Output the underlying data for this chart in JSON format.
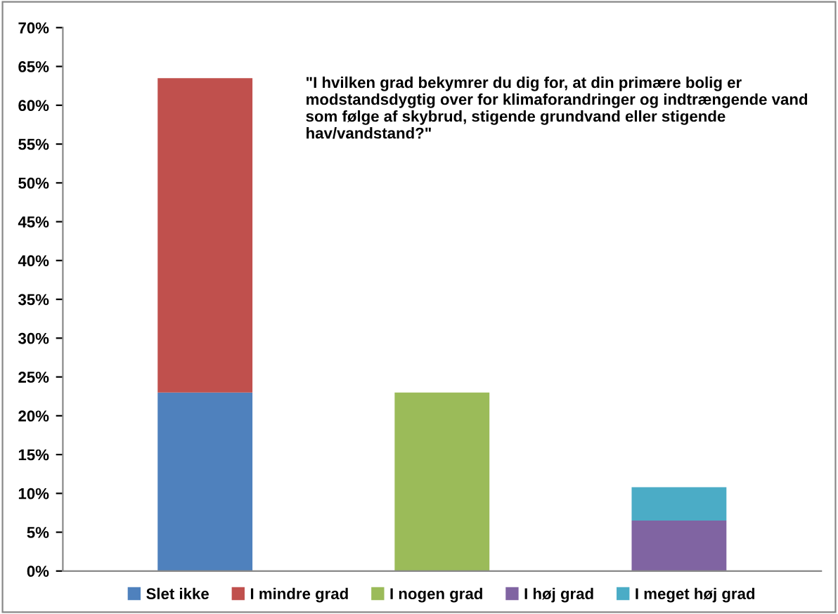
{
  "chart_data": {
    "type": "bar",
    "stacked": true,
    "categories": [
      null,
      null,
      null
    ],
    "series": [
      {
        "name": "Slet ikke",
        "color": "#4f81bd",
        "values": [
          23,
          null,
          null
        ]
      },
      {
        "name": "I mindre grad",
        "color": "#c0504d",
        "values": [
          40.5,
          null,
          null
        ]
      },
      {
        "name": "I nogen grad",
        "color": "#9bbb59",
        "values": [
          null,
          23,
          null
        ]
      },
      {
        "name": "I høj grad",
        "color": "#8064a2",
        "values": [
          null,
          null,
          6.5
        ]
      },
      {
        "name": "I meget høj grad",
        "color": "#4bacc6",
        "values": [
          null,
          null,
          4.3
        ]
      }
    ],
    "ylim": [
      0,
      70
    ],
    "yticks": [
      {
        "value": 0,
        "label": "0%"
      },
      {
        "value": 5,
        "label": "5%"
      },
      {
        "value": 10,
        "label": "10%"
      },
      {
        "value": 15,
        "label": "15%"
      },
      {
        "value": 20,
        "label": "20%"
      },
      {
        "value": 25,
        "label": "25%"
      },
      {
        "value": 30,
        "label": "30%"
      },
      {
        "value": 35,
        "label": "35%"
      },
      {
        "value": 40,
        "label": "40%"
      },
      {
        "value": 45,
        "label": "45%"
      },
      {
        "value": 50,
        "label": "50%"
      },
      {
        "value": 55,
        "label": "55%"
      },
      {
        "value": 60,
        "label": "60%"
      },
      {
        "value": 65,
        "label": "65%"
      },
      {
        "value": 70,
        "label": "70%"
      }
    ],
    "annotations": [
      "\"I hvilken grad bekymrer du dig for, at din primære bolig er modstandsdygtig over for klimaforandringer og indtrængende vand som følge af skybrud, stigende grundvand eller stigende hav/vandstand?\""
    ],
    "legend": "bottom",
    "grid": false
  }
}
